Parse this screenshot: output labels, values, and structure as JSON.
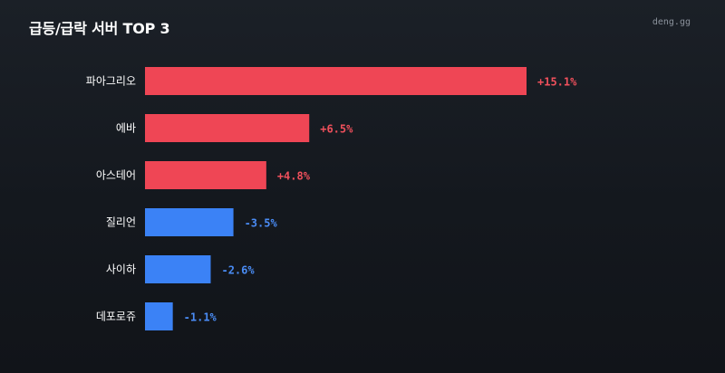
{
  "header": {
    "title": "급등/급락 서버 TOP 3",
    "watermark": "deng.gg"
  },
  "colors": {
    "positive": "#ef4655",
    "negative": "#3b82f6",
    "positive_text": "#f0505c",
    "negative_text": "#4a8cf5"
  },
  "chart_data": {
    "type": "bar",
    "orientation": "horizontal",
    "categories": [
      "파아그리오",
      "에바",
      "아스테어",
      "질리언",
      "사이하",
      "데포로쥬"
    ],
    "values": [
      15.1,
      6.5,
      4.8,
      -3.5,
      -2.6,
      -1.1
    ],
    "value_labels": [
      "+15.1%",
      "+6.5%",
      "+4.8%",
      "-3.5%",
      "-2.6%",
      "-1.1%"
    ],
    "bar_length": "absolute value",
    "unit": "%",
    "grid": false,
    "legend": "none"
  }
}
